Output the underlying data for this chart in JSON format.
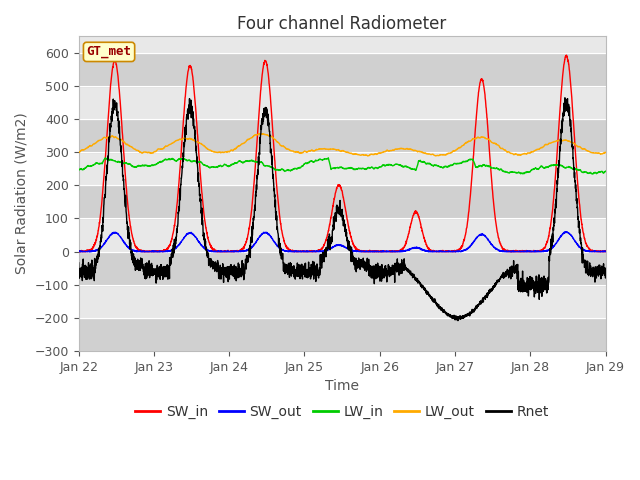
{
  "title": "Four channel Radiometer",
  "xlabel": "Time",
  "ylabel": "Solar Radiation (W/m2)",
  "ylim": [
    -300,
    650
  ],
  "yticks": [
    -300,
    -200,
    -100,
    0,
    100,
    200,
    300,
    400,
    500,
    600
  ],
  "xlim": [
    0,
    168
  ],
  "xtick_positions": [
    0,
    24,
    48,
    72,
    96,
    120,
    144,
    168
  ],
  "xtick_labels": [
    "Jan 22",
    "Jan 23",
    "Jan 24",
    "Jan 25",
    "Jan 26",
    "Jan 27",
    "Jan 28",
    "Jan 29"
  ],
  "legend_labels": [
    "SW_in",
    "SW_out",
    "LW_in",
    "LW_out",
    "Rnet"
  ],
  "legend_colors": [
    "#ff0000",
    "#0000ff",
    "#00cc00",
    "#ffaa00",
    "#000000"
  ],
  "gt_met_label": "GT_met",
  "gt_met_bg": "#ffffcc",
  "gt_met_border": "#cc8800",
  "gt_met_text_color": "#990000",
  "background_color": "#ffffff",
  "plot_bg_light": "#e8e8e8",
  "plot_bg_dark": "#d0d0d0",
  "grid_color": "#ffffff",
  "title_fontsize": 12,
  "axis_label_fontsize": 10,
  "tick_fontsize": 9,
  "legend_fontsize": 10,
  "figsize": [
    6.4,
    4.8
  ],
  "dpi": 100
}
